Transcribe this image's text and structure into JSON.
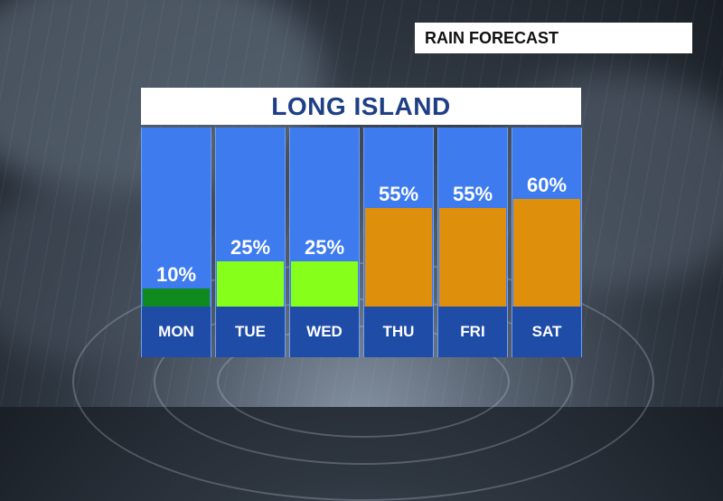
{
  "header": {
    "tag": "RAIN FORECAST"
  },
  "chart_data": {
    "type": "bar",
    "title": "LONG ISLAND",
    "categories": [
      "MON",
      "TUE",
      "WED",
      "THU",
      "FRI",
      "SAT"
    ],
    "values": [
      10,
      25,
      25,
      55,
      55,
      60
    ],
    "labels": [
      "10%",
      "25%",
      "25%",
      "55%",
      "55%",
      "60%"
    ],
    "unit": "%",
    "colors": [
      "#0f8a1f",
      "#86ff1a",
      "#86ff1a",
      "#de8f0c",
      "#de8f0c",
      "#de8f0c"
    ],
    "ylim": [
      0,
      100
    ]
  }
}
